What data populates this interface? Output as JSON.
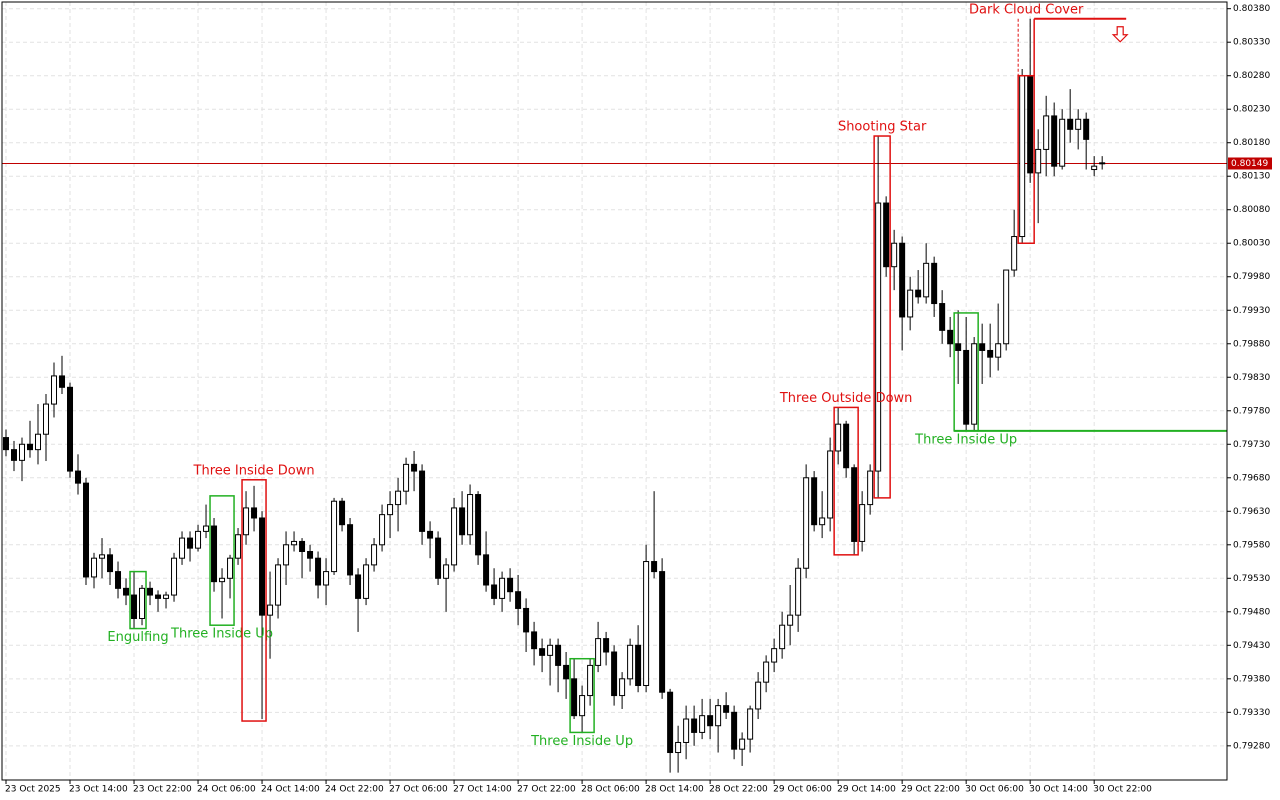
{
  "chart_data": {
    "type": "candlestick",
    "up_color": "#ffffff",
    "down_color": "#000000",
    "outline_color": "#000000",
    "grid": true,
    "grid_color": "#e2e2e2",
    "xlim": [
      -0.5,
      152.6
    ],
    "ylim": [
      0.79229,
      0.8039
    ],
    "xticks": [
      {
        "value": 0,
        "label": "23 Oct 2025"
      },
      {
        "value": 8,
        "label": "23 Oct 14:00"
      },
      {
        "value": 16,
        "label": "23 Oct 22:00"
      },
      {
        "value": 24,
        "label": "24 Oct 06:00"
      },
      {
        "value": 32,
        "label": "24 Oct 14:00"
      },
      {
        "value": 40,
        "label": "24 Oct 22:00"
      },
      {
        "value": 48,
        "label": "27 Oct 06:00"
      },
      {
        "value": 56,
        "label": "27 Oct 14:00"
      },
      {
        "value": 64,
        "label": "27 Oct 22:00"
      },
      {
        "value": 72,
        "label": "28 Oct 06:00"
      },
      {
        "value": 80,
        "label": "28 Oct 14:00"
      },
      {
        "value": 88,
        "label": "28 Oct 22:00"
      },
      {
        "value": 96,
        "label": "29 Oct 06:00"
      },
      {
        "value": 104,
        "label": "29 Oct 14:00"
      },
      {
        "value": 112,
        "label": "29 Oct 22:00"
      },
      {
        "value": 120,
        "label": "30 Oct 06:00"
      },
      {
        "value": 128,
        "label": "30 Oct 14:00"
      },
      {
        "value": 136,
        "label": "30 Oct 22:00"
      }
    ],
    "yticks": [
      {
        "value": 0.8038,
        "label": "0.80380"
      },
      {
        "value": 0.8033,
        "label": "0.80330"
      },
      {
        "value": 0.8028,
        "label": "0.80280"
      },
      {
        "value": 0.8023,
        "label": "0.80230"
      },
      {
        "value": 0.8018,
        "label": "0.80180"
      },
      {
        "value": 0.8013,
        "label": "0.80130"
      },
      {
        "value": 0.8008,
        "label": "0.80080"
      },
      {
        "value": 0.8003,
        "label": "0.80030"
      },
      {
        "value": 0.7998,
        "label": "0.79980"
      },
      {
        "value": 0.7993,
        "label": "0.79930"
      },
      {
        "value": 0.7988,
        "label": "0.79880"
      },
      {
        "value": 0.7983,
        "label": "0.79830"
      },
      {
        "value": 0.7978,
        "label": "0.79780"
      },
      {
        "value": 0.7973,
        "label": "0.79730"
      },
      {
        "value": 0.7968,
        "label": "0.79680"
      },
      {
        "value": 0.7963,
        "label": "0.79630"
      },
      {
        "value": 0.7958,
        "label": "0.79580"
      },
      {
        "value": 0.7953,
        "label": "0.79530"
      },
      {
        "value": 0.7948,
        "label": "0.79480"
      },
      {
        "value": 0.7943,
        "label": "0.79430"
      },
      {
        "value": 0.7938,
        "label": "0.79380"
      },
      {
        "value": 0.7933,
        "label": "0.79330"
      },
      {
        "value": 0.7928,
        "label": "0.79280"
      }
    ],
    "current_price": {
      "value": 0.80149,
      "label": "0.80149",
      "color": "#c00000"
    },
    "candles": [
      [
        0.7974,
        0.79752,
        0.79712,
        0.79722
      ],
      [
        0.79722,
        0.79735,
        0.7969,
        0.79706
      ],
      [
        0.79706,
        0.7974,
        0.79675,
        0.7973
      ],
      [
        0.7973,
        0.79765,
        0.7971,
        0.79722
      ],
      [
        0.79722,
        0.7979,
        0.797,
        0.79745
      ],
      [
        0.79745,
        0.79805,
        0.79705,
        0.7979
      ],
      [
        0.7979,
        0.79852,
        0.7977,
        0.79832
      ],
      [
        0.79832,
        0.79862,
        0.79805,
        0.79815
      ],
      [
        0.79815,
        0.79822,
        0.7968,
        0.7969
      ],
      [
        0.7969,
        0.79715,
        0.79655,
        0.79672
      ],
      [
        0.79672,
        0.7968,
        0.7952,
        0.79532
      ],
      [
        0.79532,
        0.79568,
        0.79515,
        0.7956
      ],
      [
        0.7956,
        0.7959,
        0.7953,
        0.79565
      ],
      [
        0.79565,
        0.79575,
        0.7952,
        0.7954
      ],
      [
        0.7954,
        0.79555,
        0.795,
        0.79515
      ],
      [
        0.79515,
        0.7953,
        0.7949,
        0.79505
      ],
      [
        0.79505,
        0.7954,
        0.79455,
        0.7947
      ],
      [
        0.7947,
        0.7952,
        0.7946,
        0.79515
      ],
      [
        0.79515,
        0.79525,
        0.7949,
        0.79505
      ],
      [
        0.79505,
        0.79512,
        0.7948,
        0.795
      ],
      [
        0.795,
        0.7951,
        0.79485,
        0.79505
      ],
      [
        0.79505,
        0.79568,
        0.79495,
        0.7956
      ],
      [
        0.7956,
        0.796,
        0.7955,
        0.7959
      ],
      [
        0.7959,
        0.796,
        0.79555,
        0.79575
      ],
      [
        0.79575,
        0.7961,
        0.7957,
        0.796
      ],
      [
        0.796,
        0.7964,
        0.7959,
        0.79608
      ],
      [
        0.79608,
        0.7962,
        0.7951,
        0.79525
      ],
      [
        0.79525,
        0.79545,
        0.7947,
        0.7953
      ],
      [
        0.7953,
        0.79565,
        0.795,
        0.7956
      ],
      [
        0.7956,
        0.79605,
        0.7955,
        0.79595
      ],
      [
        0.79595,
        0.7966,
        0.7958,
        0.79635
      ],
      [
        0.79635,
        0.79668,
        0.796,
        0.7962
      ],
      [
        0.7962,
        0.7963,
        0.7932,
        0.79475
      ],
      [
        0.79475,
        0.7954,
        0.7941,
        0.7949
      ],
      [
        0.7949,
        0.7956,
        0.7947,
        0.7955
      ],
      [
        0.7955,
        0.796,
        0.7952,
        0.7958
      ],
      [
        0.7958,
        0.796,
        0.7957,
        0.79585
      ],
      [
        0.79585,
        0.7959,
        0.7953,
        0.7957
      ],
      [
        0.7957,
        0.7958,
        0.7954,
        0.7956
      ],
      [
        0.7956,
        0.7957,
        0.795,
        0.7952
      ],
      [
        0.7952,
        0.7956,
        0.7949,
        0.7954
      ],
      [
        0.7954,
        0.7965,
        0.79535,
        0.79645
      ],
      [
        0.79645,
        0.7965,
        0.796,
        0.7961
      ],
      [
        0.7961,
        0.7962,
        0.7952,
        0.79535
      ],
      [
        0.79535,
        0.79545,
        0.7945,
        0.795
      ],
      [
        0.795,
        0.7956,
        0.7949,
        0.7955
      ],
      [
        0.7955,
        0.7959,
        0.7954,
        0.7958
      ],
      [
        0.7958,
        0.7964,
        0.7957,
        0.79625
      ],
      [
        0.79625,
        0.7966,
        0.7959,
        0.7964
      ],
      [
        0.7964,
        0.7968,
        0.796,
        0.7966
      ],
      [
        0.7966,
        0.7971,
        0.7964,
        0.797
      ],
      [
        0.797,
        0.7972,
        0.7966,
        0.7969
      ],
      [
        0.7969,
        0.797,
        0.7958,
        0.796
      ],
      [
        0.796,
        0.79615,
        0.7956,
        0.7959
      ],
      [
        0.7959,
        0.796,
        0.7952,
        0.7953
      ],
      [
        0.7953,
        0.7956,
        0.7948,
        0.7955
      ],
      [
        0.7955,
        0.7965,
        0.7954,
        0.79635
      ],
      [
        0.79635,
        0.7966,
        0.7958,
        0.79595
      ],
      [
        0.79595,
        0.7967,
        0.7958,
        0.79655
      ],
      [
        0.79655,
        0.7966,
        0.7955,
        0.79565
      ],
      [
        0.79565,
        0.796,
        0.7951,
        0.7952
      ],
      [
        0.7952,
        0.79545,
        0.7949,
        0.795
      ],
      [
        0.795,
        0.7954,
        0.7948,
        0.7953
      ],
      [
        0.7953,
        0.79545,
        0.79495,
        0.7951
      ],
      [
        0.7951,
        0.79535,
        0.7946,
        0.79485
      ],
      [
        0.79485,
        0.795,
        0.7942,
        0.7945
      ],
      [
        0.7945,
        0.79465,
        0.794,
        0.79425
      ],
      [
        0.79425,
        0.7944,
        0.7939,
        0.79415
      ],
      [
        0.79415,
        0.7944,
        0.7937,
        0.7943
      ],
      [
        0.7943,
        0.7944,
        0.7936,
        0.794
      ],
      [
        0.794,
        0.7942,
        0.7935,
        0.7938
      ],
      [
        0.7938,
        0.7941,
        0.7932,
        0.79325
      ],
      [
        0.79325,
        0.7937,
        0.793,
        0.79355
      ],
      [
        0.79355,
        0.7941,
        0.7934,
        0.794
      ],
      [
        0.794,
        0.79465,
        0.7939,
        0.7944
      ],
      [
        0.7944,
        0.7945,
        0.794,
        0.7942
      ],
      [
        0.7942,
        0.7943,
        0.7934,
        0.79355
      ],
      [
        0.79355,
        0.7939,
        0.79335,
        0.7938
      ],
      [
        0.7938,
        0.7944,
        0.7937,
        0.7943
      ],
      [
        0.7943,
        0.7946,
        0.7936,
        0.7937
      ],
      [
        0.7937,
        0.7958,
        0.7936,
        0.79555
      ],
      [
        0.79555,
        0.7966,
        0.7953,
        0.7954
      ],
      [
        0.7954,
        0.7956,
        0.7935,
        0.7936
      ],
      [
        0.7936,
        0.79365,
        0.7924,
        0.7927
      ],
      [
        0.7927,
        0.7931,
        0.7924,
        0.79285
      ],
      [
        0.79285,
        0.7934,
        0.7926,
        0.7932
      ],
      [
        0.7932,
        0.7934,
        0.7928,
        0.793
      ],
      [
        0.793,
        0.7935,
        0.7929,
        0.79325
      ],
      [
        0.79325,
        0.7935,
        0.7929,
        0.7931
      ],
      [
        0.7931,
        0.7935,
        0.7927,
        0.7934
      ],
      [
        0.7934,
        0.7936,
        0.7932,
        0.7933
      ],
      [
        0.7933,
        0.7934,
        0.7926,
        0.79275
      ],
      [
        0.79275,
        0.793,
        0.7925,
        0.7929
      ],
      [
        0.7929,
        0.7934,
        0.7927,
        0.79335
      ],
      [
        0.79335,
        0.7939,
        0.7932,
        0.79375
      ],
      [
        0.79375,
        0.79415,
        0.7936,
        0.79405
      ],
      [
        0.79405,
        0.7944,
        0.7939,
        0.79425
      ],
      [
        0.79425,
        0.7948,
        0.7941,
        0.7946
      ],
      [
        0.7946,
        0.7952,
        0.7943,
        0.79475
      ],
      [
        0.79475,
        0.7956,
        0.7945,
        0.79545
      ],
      [
        0.79545,
        0.797,
        0.7953,
        0.7968
      ],
      [
        0.7968,
        0.7969,
        0.796,
        0.7961
      ],
      [
        0.7961,
        0.7966,
        0.7959,
        0.7962
      ],
      [
        0.7962,
        0.7974,
        0.796,
        0.7972
      ],
      [
        0.7972,
        0.79785,
        0.797,
        0.7976
      ],
      [
        0.7976,
        0.79765,
        0.7968,
        0.79695
      ],
      [
        0.79695,
        0.797,
        0.79565,
        0.79585
      ],
      [
        0.79585,
        0.7966,
        0.7957,
        0.7964
      ],
      [
        0.7964,
        0.797,
        0.79625,
        0.7969
      ],
      [
        0.7969,
        0.8019,
        0.7965,
        0.8009
      ],
      [
        0.8009,
        0.801,
        0.7998,
        0.79995
      ],
      [
        0.79995,
        0.8005,
        0.7996,
        0.8003
      ],
      [
        0.8003,
        0.8004,
        0.7987,
        0.7992
      ],
      [
        0.7992,
        0.7998,
        0.799,
        0.7996
      ],
      [
        0.7996,
        0.7999,
        0.7994,
        0.7995
      ],
      [
        0.7995,
        0.8003,
        0.7994,
        0.8
      ],
      [
        0.8,
        0.8001,
        0.7992,
        0.7994
      ],
      [
        0.7994,
        0.7996,
        0.7988,
        0.799
      ],
      [
        0.799,
        0.7992,
        0.7986,
        0.7988
      ],
      [
        0.7988,
        0.7993,
        0.7982,
        0.7987
      ],
      [
        0.7987,
        0.7992,
        0.7975,
        0.7976
      ],
      [
        0.7976,
        0.7989,
        0.7975,
        0.7988
      ],
      [
        0.7988,
        0.7991,
        0.7982,
        0.7987
      ],
      [
        0.7987,
        0.7991,
        0.7983,
        0.7986
      ],
      [
        0.7986,
        0.7994,
        0.7984,
        0.7988
      ],
      [
        0.7988,
        0.7999,
        0.7987,
        0.7999
      ],
      [
        0.7999,
        0.8008,
        0.7998,
        0.8004
      ],
      [
        0.8004,
        0.8029,
        0.8003,
        0.8028
      ],
      [
        0.8028,
        0.80365,
        0.8012,
        0.80135
      ],
      [
        0.80135,
        0.802,
        0.8006,
        0.8017
      ],
      [
        0.8017,
        0.8025,
        0.8013,
        0.8022
      ],
      [
        0.8022,
        0.8024,
        0.8013,
        0.80145
      ],
      [
        0.80145,
        0.8023,
        0.8014,
        0.80215
      ],
      [
        0.80215,
        0.8026,
        0.8018,
        0.802
      ],
      [
        0.802,
        0.8023,
        0.8017,
        0.80215
      ],
      [
        0.80215,
        0.80225,
        0.8014,
        0.80185
      ],
      [
        0.8014,
        0.8016,
        0.8013,
        0.80145
      ],
      [
        0.8015,
        0.8016,
        0.8014,
        0.80149
      ]
    ],
    "patterns": [
      {
        "label": "Engulfing",
        "color": "#22b022",
        "start": 16,
        "end": 17,
        "high": 0.7954,
        "low": 0.79455,
        "label_side": "below"
      },
      {
        "label": "Three Inside Up",
        "color": "#22b022",
        "start": 26,
        "end": 28,
        "high": 0.79653,
        "low": 0.7946,
        "label_side": "below"
      },
      {
        "label": "Three Inside Down",
        "color": "#e01010",
        "start": 30,
        "end": 32,
        "high": 0.79677,
        "low": 0.79317,
        "label_side": "above"
      },
      {
        "label": "Three Inside Up",
        "color": "#22b022",
        "start": 71,
        "end": 73,
        "high": 0.7941,
        "low": 0.793,
        "label_side": "below"
      },
      {
        "label": "Three Outside Down",
        "color": "#e01010",
        "start": 104,
        "end": 106,
        "high": 0.79785,
        "low": 0.79565,
        "label_side": "above"
      },
      {
        "label": "Shooting Star",
        "color": "#e01010",
        "start": 109,
        "end": 110,
        "high": 0.8019,
        "low": 0.7965,
        "label_side": "above"
      },
      {
        "label": "Three Inside Up",
        "color": "#22b022",
        "start": 119,
        "end": 121,
        "high": 0.79926,
        "low": 0.7975,
        "label_side": "below",
        "level": 0.7975,
        "level_to": 152.6
      },
      {
        "label": "Dark Cloud Cover",
        "color": "#e01010",
        "start": 127,
        "end": 128,
        "high": 0.8028,
        "low": 0.8003,
        "label_side": "above",
        "level": 0.80365,
        "level_to": 140
      }
    ]
  }
}
